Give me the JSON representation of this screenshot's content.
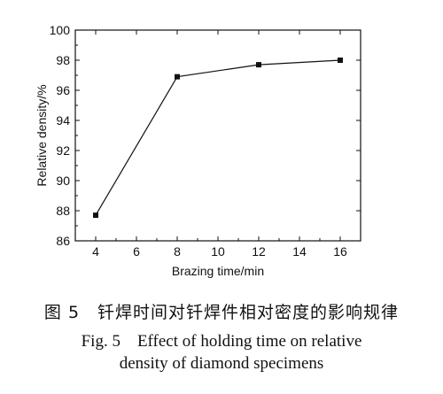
{
  "chart_data": {
    "type": "line",
    "x": [
      4,
      8,
      12,
      16
    ],
    "values": [
      87.7,
      96.9,
      97.7,
      98.0
    ],
    "xlabel": "Brazing time/min",
    "ylabel": "Relative density/%",
    "xlim": [
      3,
      17
    ],
    "ylim": [
      86,
      100
    ],
    "xticks": [
      "4",
      "6",
      "8",
      "10",
      "12",
      "14",
      "16"
    ],
    "yticks": [
      "86",
      "88",
      "90",
      "92",
      "94",
      "96",
      "98",
      "100"
    ],
    "marker": "square",
    "grid": false,
    "line_color": "#111111"
  },
  "captions": {
    "cn": "图 5　钎焊时间对钎焊件相对密度的影响规律",
    "en_line1": "Fig. 5　Effect of holding time on relative",
    "en_line2": "density of diamond specimens"
  }
}
